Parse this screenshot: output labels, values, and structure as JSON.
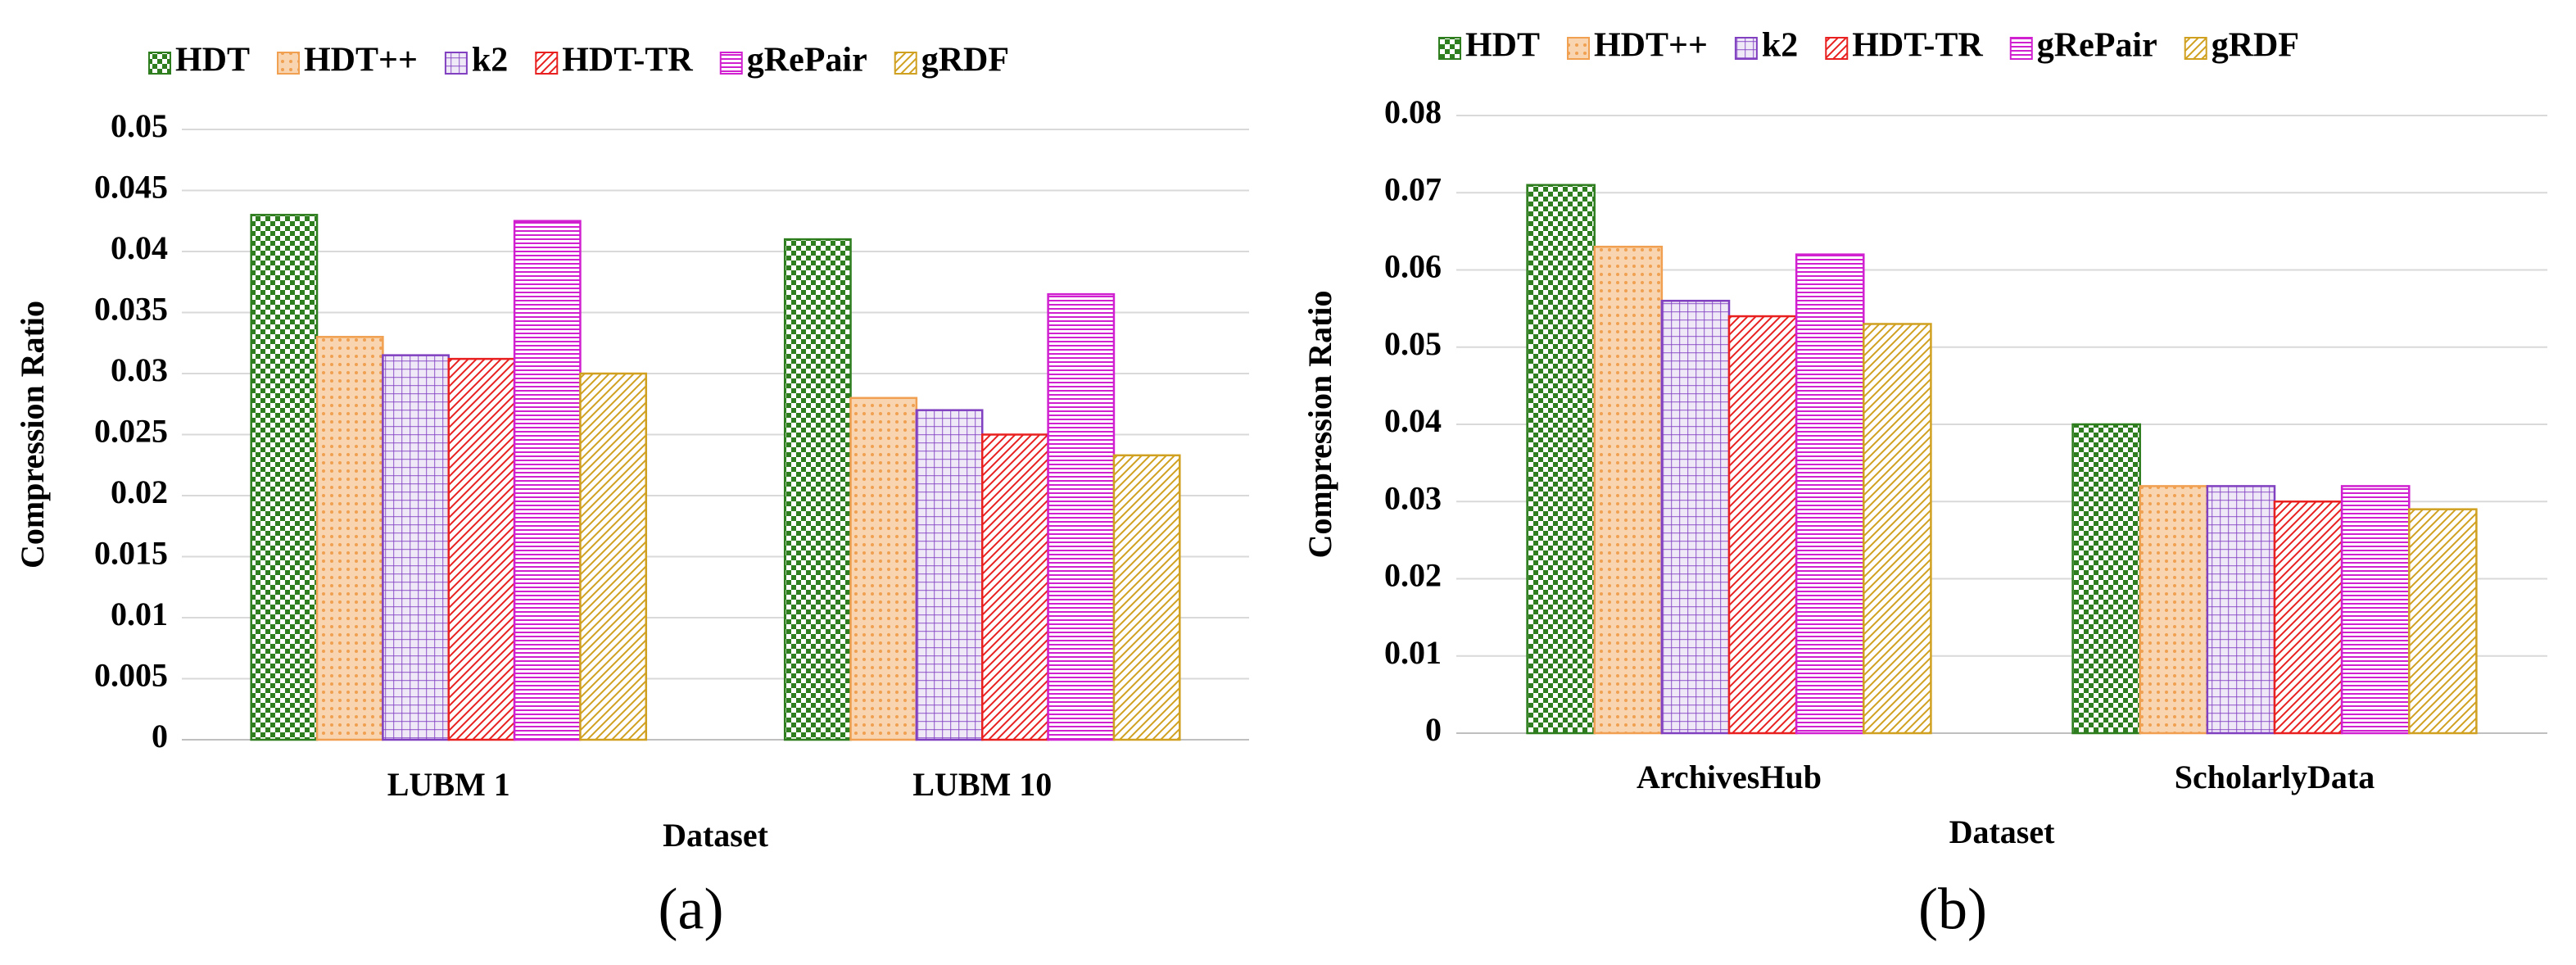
{
  "chart_data": [
    {
      "type": "bar",
      "caption": "(a)",
      "x_label": "Dataset",
      "y_label": "Compression Ratio",
      "categories": [
        "LUBM 1",
        "LUBM 10"
      ],
      "series": [
        {
          "name": "HDT",
          "color": "#2e7d1e",
          "pattern": "checker",
          "values": [
            0.043,
            0.041
          ]
        },
        {
          "name": "HDT++",
          "color": "#f0a050",
          "pattern": "dots",
          "values": [
            0.033,
            0.028
          ]
        },
        {
          "name": "k2",
          "color": "#8040c0",
          "pattern": "grid",
          "values": [
            0.0315,
            0.027
          ]
        },
        {
          "name": "HDT-TR",
          "color": "#e82020",
          "pattern": "diagonal",
          "values": [
            0.0312,
            0.025
          ]
        },
        {
          "name": "gRePair",
          "color": "#d020d0",
          "pattern": "horizontal",
          "values": [
            0.0425,
            0.0365
          ]
        },
        {
          "name": "gRDF",
          "color": "#d0a020",
          "pattern": "diagonal",
          "values": [
            0.03,
            0.0233
          ]
        }
      ],
      "ylim": [
        0,
        0.05
      ],
      "yticks": [
        0,
        0.005,
        0.01,
        0.015,
        0.02,
        0.025,
        0.03,
        0.035,
        0.04,
        0.045,
        0.05
      ],
      "grid": true
    },
    {
      "type": "bar",
      "caption": "(b)",
      "x_label": "Dataset",
      "y_label": "Compression Ratio",
      "categories": [
        "ArchivesHub",
        "ScholarlyData"
      ],
      "series": [
        {
          "name": "HDT",
          "color": "#2e7d1e",
          "pattern": "checker",
          "values": [
            0.071,
            0.04
          ]
        },
        {
          "name": "HDT++",
          "color": "#f0a050",
          "pattern": "dots",
          "values": [
            0.063,
            0.032
          ]
        },
        {
          "name": "k2",
          "color": "#8040c0",
          "pattern": "grid",
          "values": [
            0.056,
            0.032
          ]
        },
        {
          "name": "HDT-TR",
          "color": "#e82020",
          "pattern": "diagonal",
          "values": [
            0.054,
            0.03
          ]
        },
        {
          "name": "gRePair",
          "color": "#d020d0",
          "pattern": "horizontal",
          "values": [
            0.062,
            0.032
          ]
        },
        {
          "name": "gRDF",
          "color": "#d0a020",
          "pattern": "diagonal",
          "values": [
            0.053,
            0.029
          ]
        }
      ],
      "ylim": [
        0,
        0.08
      ],
      "yticks": [
        0,
        0.01,
        0.02,
        0.03,
        0.04,
        0.05,
        0.06,
        0.07,
        0.08
      ],
      "grid": true
    }
  ]
}
